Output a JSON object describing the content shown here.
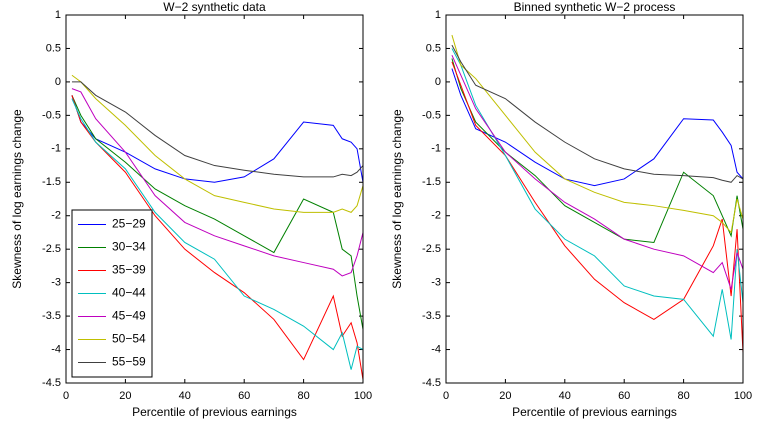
{
  "chart_data": [
    {
      "type": "line",
      "title": "W−2 synthetic data",
      "x_label": "Percentile of previous earnings",
      "y_label": "Skewness of log earnings change",
      "x": [
        2,
        5,
        10,
        20,
        30,
        40,
        50,
        60,
        70,
        80,
        90,
        93,
        96,
        98,
        100
      ],
      "xlim": [
        0,
        100
      ],
      "xticks": [
        0,
        20,
        40,
        60,
        80,
        100
      ],
      "ylim": [
        -4.5,
        1
      ],
      "yticks": [
        -4.5,
        -4,
        -3.5,
        -3,
        -2.5,
        -2,
        -1.5,
        -1,
        -0.5,
        0,
        0.5,
        1
      ],
      "legend": "lower left",
      "series": [
        {
          "name": "25−29",
          "color": "#0000ff",
          "values": [
            -0.2,
            -0.6,
            -0.85,
            -1.05,
            -1.3,
            -1.45,
            -1.5,
            -1.42,
            -1.15,
            -0.6,
            -0.65,
            -0.85,
            -0.9,
            -1.0,
            -1.5
          ]
        },
        {
          "name": "30−34",
          "color": "#008000",
          "values": [
            -0.2,
            -0.5,
            -0.85,
            -1.2,
            -1.6,
            -1.85,
            -2.05,
            -2.3,
            -2.55,
            -1.75,
            -1.95,
            -2.5,
            -2.6,
            -3.2,
            -3.7
          ]
        },
        {
          "name": "35−39",
          "color": "#ff0000",
          "values": [
            -0.2,
            -0.6,
            -0.9,
            -1.35,
            -2.0,
            -2.5,
            -2.85,
            -3.15,
            -3.55,
            -4.15,
            -3.2,
            -3.8,
            -3.6,
            -3.9,
            -4.45
          ]
        },
        {
          "name": "40−44",
          "color": "#00bfbf",
          "values": [
            -0.25,
            -0.55,
            -0.9,
            -1.3,
            -1.95,
            -2.4,
            -2.65,
            -3.2,
            -3.4,
            -3.65,
            -4.0,
            -3.75,
            -4.3,
            -3.95,
            -4.0
          ]
        },
        {
          "name": "45−49",
          "color": "#bf00bf",
          "values": [
            -0.1,
            -0.15,
            -0.55,
            -1.05,
            -1.7,
            -2.1,
            -2.3,
            -2.45,
            -2.6,
            -2.7,
            -2.8,
            -2.9,
            -2.85,
            -2.6,
            -2.25
          ]
        },
        {
          "name": "50−54",
          "color": "#bfbf00",
          "values": [
            0.1,
            0,
            -0.25,
            -0.65,
            -1.1,
            -1.45,
            -1.7,
            -1.8,
            -1.9,
            -1.95,
            -1.95,
            -1.9,
            -1.95,
            -1.85,
            -1.55
          ]
        },
        {
          "name": "55−59",
          "color": "#404040",
          "values": [
            0,
            0,
            -0.2,
            -0.45,
            -0.8,
            -1.1,
            -1.25,
            -1.32,
            -1.38,
            -1.42,
            -1.42,
            -1.38,
            -1.4,
            -1.35,
            -1.25
          ]
        }
      ]
    },
    {
      "type": "line",
      "title": "Binned synthetic W−2 process",
      "x_label": "Percentile of previous earnings",
      "y_label": "Skewness of log earnings change",
      "x": [
        2,
        5,
        10,
        20,
        30,
        40,
        50,
        60,
        70,
        80,
        90,
        93,
        96,
        98,
        100
      ],
      "xlim": [
        0,
        100
      ],
      "xticks": [
        0,
        20,
        40,
        60,
        80,
        100
      ],
      "ylim": [
        -4.5,
        1
      ],
      "yticks": [
        -4.5,
        -4,
        -3.5,
        -3,
        -2.5,
        -2,
        -1.5,
        -1,
        -0.5,
        0,
        0.5,
        1
      ],
      "series": [
        {
          "color": "#0000ff",
          "values": [
            0.2,
            -0.2,
            -0.7,
            -0.9,
            -1.2,
            -1.45,
            -1.55,
            -1.45,
            -1.15,
            -0.55,
            -0.57,
            -0.75,
            -0.95,
            -1.35,
            -1.45
          ]
        },
        {
          "color": "#008000",
          "values": [
            0.35,
            -0.1,
            -0.6,
            -1.05,
            -1.4,
            -1.85,
            -2.1,
            -2.35,
            -2.4,
            -1.35,
            -1.7,
            -2.0,
            -2.3,
            -1.7,
            -2.2
          ]
        },
        {
          "color": "#ff0000",
          "values": [
            0.3,
            -0.05,
            -0.65,
            -1.1,
            -1.8,
            -2.45,
            -2.95,
            -3.3,
            -3.55,
            -3.25,
            -2.45,
            -2.05,
            -3.2,
            -2.2,
            -4.05
          ]
        },
        {
          "color": "#00bfbf",
          "values": [
            0.5,
            0.25,
            -0.35,
            -1.1,
            -1.9,
            -2.35,
            -2.6,
            -3.05,
            -3.2,
            -3.25,
            -3.8,
            -3.1,
            -3.85,
            -2.5,
            -3.3
          ]
        },
        {
          "color": "#bf00bf",
          "values": [
            0.4,
            0.1,
            -0.4,
            -1.05,
            -1.45,
            -1.8,
            -2.05,
            -2.35,
            -2.5,
            -2.6,
            -2.85,
            -2.7,
            -3.1,
            -2.55,
            -2.8
          ]
        },
        {
          "color": "#bfbf00",
          "values": [
            0.7,
            0.25,
            0.05,
            -0.5,
            -1.05,
            -1.45,
            -1.65,
            -1.8,
            -1.85,
            -1.92,
            -2.0,
            -2.1,
            -2.25,
            -1.75,
            -2.05
          ]
        },
        {
          "color": "#404040",
          "values": [
            0.55,
            0.3,
            -0.05,
            -0.25,
            -0.6,
            -0.9,
            -1.15,
            -1.3,
            -1.38,
            -1.4,
            -1.43,
            -1.47,
            -1.5,
            -1.4,
            -1.45
          ]
        }
      ]
    }
  ]
}
